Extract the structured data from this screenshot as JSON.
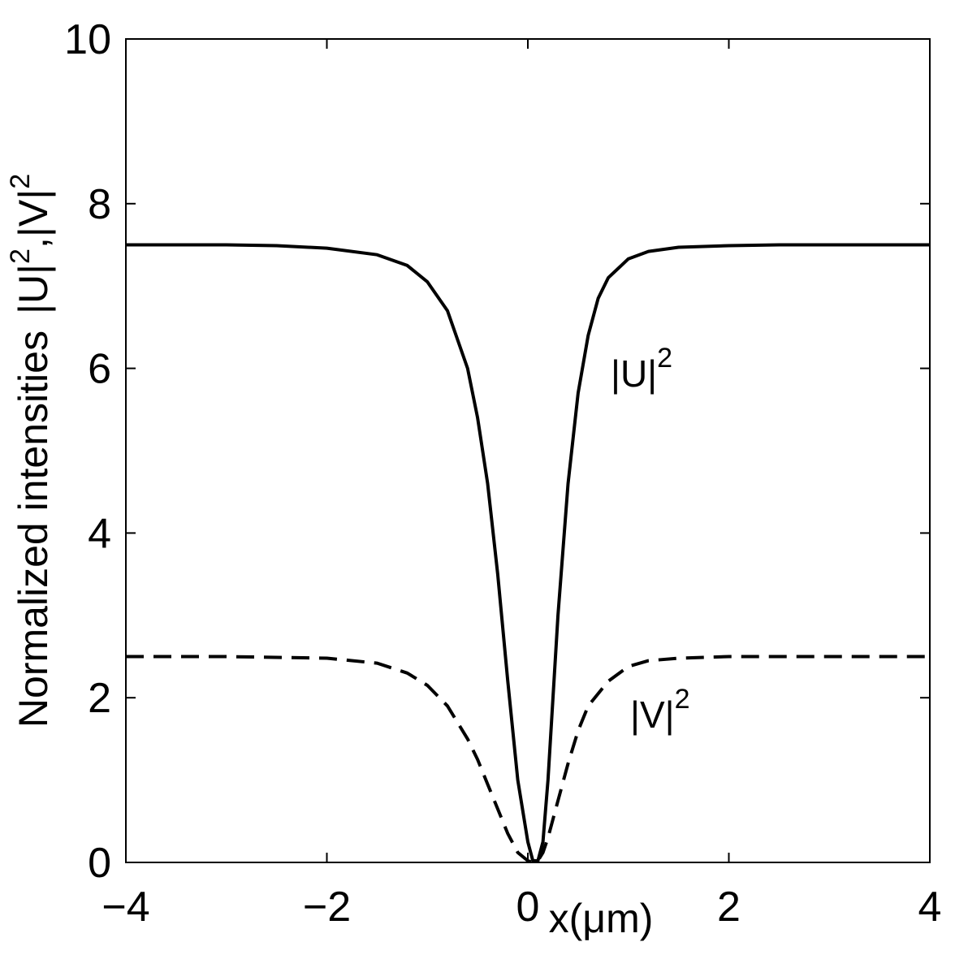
{
  "chart_data": {
    "type": "line",
    "title": "",
    "xlabel": "x(μm)",
    "ylabel": "Normalized intensities  |U|², |V|²",
    "ylabel_main": "Normalized intensities",
    "ylabel_u": "|U|",
    "ylabel_v": "|V|",
    "sup": "2",
    "xlim": [
      -4,
      4
    ],
    "ylim": [
      0,
      10
    ],
    "xticks": [
      -4,
      -2,
      0,
      2,
      4
    ],
    "yticks": [
      0,
      2,
      4,
      6,
      8,
      10
    ],
    "grid": false,
    "legend": "none",
    "series": [
      {
        "style": "solid",
        "color": "#000000",
        "x": [
          -4,
          -3,
          -2.5,
          -2,
          -1.5,
          -1.2,
          -1.0,
          -0.8,
          -0.6,
          -0.5,
          -0.4,
          -0.3,
          -0.2,
          -0.1,
          0.0,
          0.05,
          0.1,
          0.15,
          0.2,
          0.3,
          0.4,
          0.5,
          0.6,
          0.7,
          0.8,
          1.0,
          1.2,
          1.5,
          2,
          2.5,
          3,
          4
        ],
        "y": [
          7.5,
          7.5,
          7.49,
          7.46,
          7.38,
          7.25,
          7.05,
          6.7,
          6.0,
          5.4,
          4.6,
          3.5,
          2.2,
          1.0,
          0.25,
          0.02,
          0.02,
          0.25,
          1.0,
          3.0,
          4.6,
          5.7,
          6.4,
          6.85,
          7.1,
          7.33,
          7.42,
          7.47,
          7.49,
          7.5,
          7.5,
          7.5
        ]
      },
      {
        "style": "dashed",
        "color": "#000000",
        "x": [
          -4,
          -3,
          -2,
          -1.5,
          -1.2,
          -1.0,
          -0.8,
          -0.6,
          -0.5,
          -0.4,
          -0.3,
          -0.2,
          -0.1,
          0.0,
          0.05,
          0.1,
          0.15,
          0.2,
          0.3,
          0.4,
          0.5,
          0.6,
          0.8,
          1.0,
          1.2,
          1.5,
          2,
          3,
          4
        ],
        "y": [
          2.5,
          2.5,
          2.48,
          2.42,
          2.3,
          2.15,
          1.9,
          1.5,
          1.25,
          0.95,
          0.65,
          0.35,
          0.12,
          0.02,
          0.0,
          0.02,
          0.12,
          0.3,
          0.75,
          1.2,
          1.6,
          1.9,
          2.2,
          2.38,
          2.45,
          2.48,
          2.5,
          2.5,
          2.5
        ]
      }
    ],
    "annotations": [
      {
        "text": "|U|",
        "sup": "2",
        "x": 0.95,
        "y": 5.9
      },
      {
        "text": "|V|",
        "sup": "2",
        "x": 1.12,
        "y": 1.75
      }
    ]
  }
}
